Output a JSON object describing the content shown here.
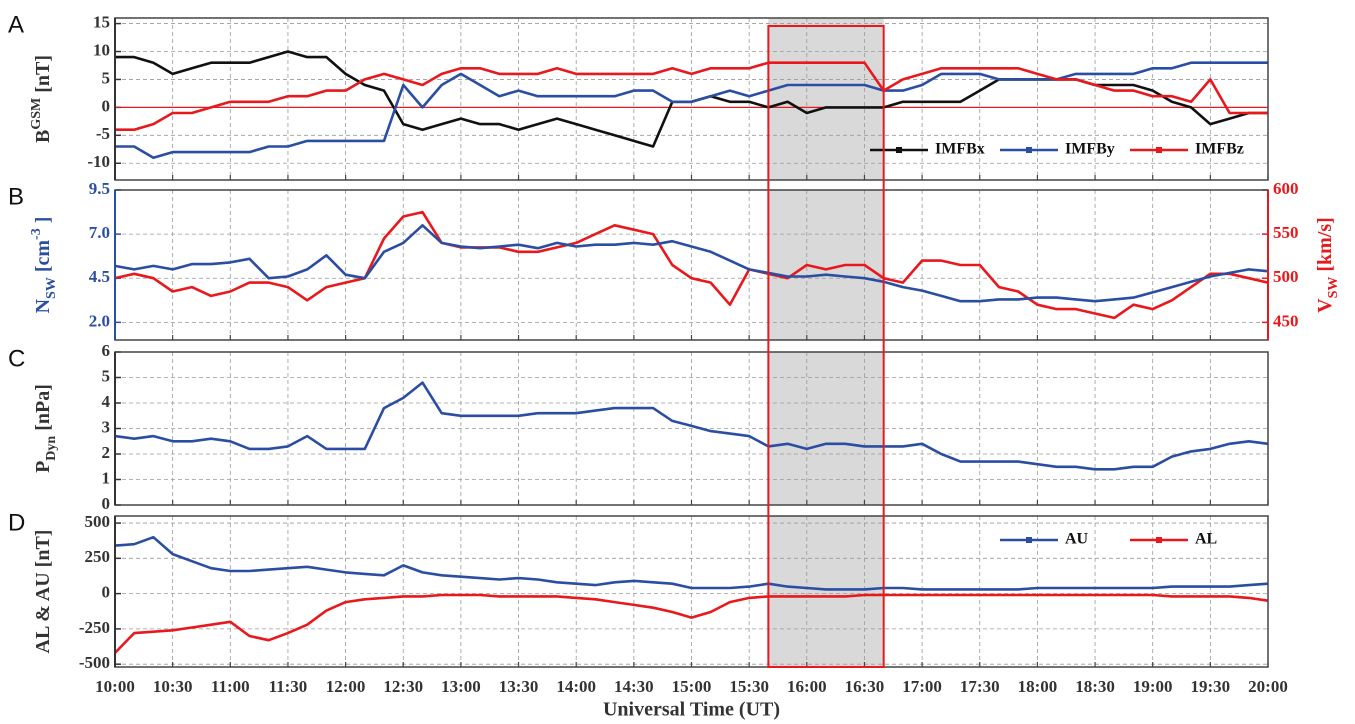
{
  "chart_data": [
    {
      "type": "line",
      "panel_label": "A",
      "ylabel": [
        {
          "text": "B"
        },
        {
          "text": "GSM",
          "shift": "super"
        },
        {
          "text": "[nT]"
        }
      ],
      "ylabel_color": "#333333",
      "x": [
        "10:00",
        "10:10",
        "10:20",
        "10:30",
        "10:40",
        "10:50",
        "11:00",
        "11:10",
        "11:20",
        "11:30",
        "11:40",
        "11:50",
        "12:00",
        "12:10",
        "12:20",
        "12:30",
        "12:40",
        "12:50",
        "13:00",
        "13:10",
        "13:20",
        "13:30",
        "13:40",
        "13:50",
        "14:00",
        "14:10",
        "14:20",
        "14:30",
        "14:40",
        "14:50",
        "15:00",
        "15:10",
        "15:20",
        "15:30",
        "15:40",
        "15:50",
        "16:00",
        "16:10",
        "16:20",
        "16:30",
        "16:40",
        "16:50",
        "17:00",
        "17:10",
        "17:20",
        "17:30",
        "17:40",
        "17:50",
        "18:00",
        "18:10",
        "18:20",
        "18:30",
        "18:40",
        "18:50",
        "19:00",
        "19:10",
        "19:20",
        "19:30",
        "19:40",
        "19:50",
        "20:00"
      ],
      "xlim": [
        "10:00",
        "20:00"
      ],
      "xticks": [
        "10:00",
        "10:30",
        "11:00",
        "11:30",
        "12:00",
        "12:30",
        "13:00",
        "13:30",
        "14:00",
        "14:30",
        "15:00",
        "15:30",
        "16:00",
        "16:30",
        "17:00",
        "17:30",
        "18:00",
        "18:30",
        "19:00",
        "19:30",
        "20:00"
      ],
      "ylim": [
        -13,
        16
      ],
      "yticks": [
        15,
        10,
        5,
        0,
        -5,
        -10
      ],
      "grid": true,
      "zero_line_color": "#e8191c",
      "highlight": [
        "15:40",
        "16:40"
      ],
      "legend": "lower right",
      "series": [
        {
          "name": "IMFBx",
          "color": "#111111",
          "values": [
            9,
            9,
            8,
            6,
            7,
            8,
            8,
            8,
            9,
            10,
            9,
            9,
            6,
            4,
            3,
            -3,
            -4,
            -3,
            -2,
            -3,
            -3,
            -4,
            -3,
            -2,
            -3,
            -4,
            -5,
            -6,
            -7,
            1,
            1,
            2,
            1,
            1,
            0,
            1,
            -1,
            0,
            0,
            0,
            0,
            1,
            1,
            1,
            1,
            3,
            5,
            5,
            5,
            5,
            5,
            4,
            4,
            4,
            3,
            1,
            0,
            -3,
            -2,
            -1,
            -1
          ]
        },
        {
          "name": "IMFBy",
          "color": "#2b4ea2",
          "values": [
            -7,
            -7,
            -9,
            -8,
            -8,
            -8,
            -8,
            -8,
            -7,
            -7,
            -6,
            -6,
            -6,
            -6,
            -6,
            4,
            0,
            4,
            6,
            4,
            2,
            3,
            2,
            2,
            2,
            2,
            2,
            3,
            3,
            1,
            1,
            2,
            3,
            2,
            3,
            4,
            4,
            4,
            4,
            4,
            3,
            3,
            4,
            6,
            6,
            6,
            5,
            5,
            5,
            5,
            6,
            6,
            6,
            6,
            7,
            7,
            8,
            8,
            8,
            8,
            8
          ]
        },
        {
          "name": "IMFBz",
          "color": "#e8191c",
          "values": [
            -4,
            -4,
            -3,
            -1,
            -1,
            0,
            1,
            1,
            1,
            2,
            2,
            3,
            3,
            5,
            6,
            5,
            4,
            6,
            7,
            7,
            6,
            6,
            6,
            7,
            6,
            6,
            6,
            6,
            6,
            7,
            6,
            7,
            7,
            7,
            8,
            8,
            8,
            8,
            8,
            8,
            3,
            5,
            6,
            7,
            7,
            7,
            7,
            7,
            6,
            5,
            5,
            4,
            3,
            3,
            2,
            2,
            1,
            5,
            -1,
            -1,
            -1
          ]
        }
      ]
    },
    {
      "type": "line",
      "panel_label": "B",
      "ylabel": [
        {
          "text": "N"
        },
        {
          "text": "SW",
          "shift": "sub"
        },
        {
          "text": "[cm"
        },
        {
          "text": "-3",
          "shift": "super"
        },
        {
          "text": "]"
        }
      ],
      "ylabel_color": "#2b4ea2",
      "y2label": [
        {
          "text": "V"
        },
        {
          "text": "SW",
          "shift": "sub"
        },
        {
          "text": "[km/s]"
        }
      ],
      "y2label_color": "#e8191c",
      "x": [
        "10:00",
        "10:10",
        "10:20",
        "10:30",
        "10:40",
        "10:50",
        "11:00",
        "11:10",
        "11:20",
        "11:30",
        "11:40",
        "11:50",
        "12:00",
        "12:10",
        "12:20",
        "12:30",
        "12:40",
        "12:50",
        "13:00",
        "13:10",
        "13:20",
        "13:30",
        "13:40",
        "13:50",
        "14:00",
        "14:10",
        "14:20",
        "14:30",
        "14:40",
        "14:50",
        "15:00",
        "15:10",
        "15:20",
        "15:30",
        "15:40",
        "15:50",
        "16:00",
        "16:10",
        "16:20",
        "16:30",
        "16:40",
        "16:50",
        "17:00",
        "17:10",
        "17:20",
        "17:30",
        "17:40",
        "17:50",
        "18:00",
        "18:10",
        "18:20",
        "18:30",
        "18:40",
        "18:50",
        "19:00",
        "19:10",
        "19:20",
        "19:30",
        "19:40",
        "19:50",
        "20:00"
      ],
      "xlim": [
        "10:00",
        "20:00"
      ],
      "xticks": [
        "10:00",
        "10:30",
        "11:00",
        "11:30",
        "12:00",
        "12:30",
        "13:00",
        "13:30",
        "14:00",
        "14:30",
        "15:00",
        "15:30",
        "16:00",
        "16:30",
        "17:00",
        "17:30",
        "18:00",
        "18:30",
        "19:00",
        "19:30",
        "20:00"
      ],
      "ylim": [
        1,
        9.5
      ],
      "yticks": [
        9.5,
        {
          "value": 7,
          "label": "7.0"
        },
        4.5,
        {
          "value": 2,
          "label": "2.0"
        }
      ],
      "y2lim": [
        430,
        600
      ],
      "y2ticks": [
        600,
        550,
        500,
        450
      ],
      "grid": true,
      "highlight": [
        "15:40",
        "16:40"
      ],
      "series": [
        {
          "color": "#e8191c",
          "axis": "y2",
          "values": [
            500,
            505,
            500,
            485,
            490,
            480,
            485,
            495,
            495,
            490,
            475,
            490,
            495,
            500,
            545,
            570,
            575,
            540,
            535,
            535,
            535,
            530,
            530,
            535,
            540,
            550,
            560,
            555,
            550,
            515,
            500,
            495,
            470,
            510,
            505,
            500,
            515,
            510,
            515,
            515,
            500,
            495,
            520,
            520,
            515,
            515,
            490,
            485,
            470,
            465,
            465,
            460,
            455,
            470,
            465,
            475,
            490,
            505,
            505,
            500,
            495
          ]
        },
        {
          "color": "#2b4ea2",
          "values": [
            5.2,
            5.0,
            5.2,
            5.0,
            5.3,
            5.3,
            5.4,
            5.6,
            4.5,
            4.6,
            5.0,
            5.8,
            4.7,
            4.5,
            6.0,
            6.5,
            7.5,
            6.5,
            6.3,
            6.2,
            6.3,
            6.4,
            6.2,
            6.5,
            6.3,
            6.4,
            6.4,
            6.5,
            6.4,
            6.6,
            6.3,
            6.0,
            5.5,
            5.0,
            4.8,
            4.6,
            4.6,
            4.7,
            4.6,
            4.5,
            4.3,
            4.0,
            3.8,
            3.5,
            3.2,
            3.2,
            3.3,
            3.3,
            3.4,
            3.4,
            3.3,
            3.2,
            3.3,
            3.4,
            3.7,
            4.0,
            4.3,
            4.6,
            4.8,
            5.0,
            4.9
          ]
        }
      ]
    },
    {
      "type": "line",
      "panel_label": "C",
      "ylabel": [
        {
          "text": "P"
        },
        {
          "text": "Dyn",
          "shift": "sub"
        },
        {
          "text": "[nPa]"
        }
      ],
      "ylabel_color": "#333333",
      "x": [
        "10:00",
        "10:10",
        "10:20",
        "10:30",
        "10:40",
        "10:50",
        "11:00",
        "11:10",
        "11:20",
        "11:30",
        "11:40",
        "11:50",
        "12:00",
        "12:10",
        "12:20",
        "12:30",
        "12:40",
        "12:50",
        "13:00",
        "13:10",
        "13:20",
        "13:30",
        "13:40",
        "13:50",
        "14:00",
        "14:10",
        "14:20",
        "14:30",
        "14:40",
        "14:50",
        "15:00",
        "15:10",
        "15:20",
        "15:30",
        "15:40",
        "15:50",
        "16:00",
        "16:10",
        "16:20",
        "16:30",
        "16:40",
        "16:50",
        "17:00",
        "17:10",
        "17:20",
        "17:30",
        "17:40",
        "17:50",
        "18:00",
        "18:10",
        "18:20",
        "18:30",
        "18:40",
        "18:50",
        "19:00",
        "19:10",
        "19:20",
        "19:30",
        "19:40",
        "19:50",
        "20:00"
      ],
      "xlim": [
        "10:00",
        "20:00"
      ],
      "xticks": [
        "10:00",
        "10:30",
        "11:00",
        "11:30",
        "12:00",
        "12:30",
        "13:00",
        "13:30",
        "14:00",
        "14:30",
        "15:00",
        "15:30",
        "16:00",
        "16:30",
        "17:00",
        "17:30",
        "18:00",
        "18:30",
        "19:00",
        "19:30",
        "20:00"
      ],
      "ylim": [
        0,
        6
      ],
      "yticks": [
        6,
        5,
        4,
        3,
        2,
        1,
        0
      ],
      "grid": true,
      "highlight": [
        "15:40",
        "16:40"
      ],
      "series": [
        {
          "color": "#2b4ea2",
          "values": [
            2.7,
            2.6,
            2.7,
            2.5,
            2.5,
            2.6,
            2.5,
            2.2,
            2.2,
            2.3,
            2.7,
            2.2,
            2.2,
            2.2,
            3.8,
            4.2,
            4.8,
            3.6,
            3.5,
            3.5,
            3.5,
            3.5,
            3.6,
            3.6,
            3.6,
            3.7,
            3.8,
            3.8,
            3.8,
            3.3,
            3.1,
            2.9,
            2.8,
            2.7,
            2.3,
            2.4,
            2.2,
            2.4,
            2.4,
            2.3,
            2.3,
            2.3,
            2.4,
            2.0,
            1.7,
            1.7,
            1.7,
            1.7,
            1.6,
            1.5,
            1.5,
            1.4,
            1.4,
            1.5,
            1.5,
            1.9,
            2.1,
            2.2,
            2.4,
            2.5,
            2.4
          ]
        }
      ]
    },
    {
      "type": "line",
      "panel_label": "D",
      "ylabel": [
        {
          "text": "AL & AU [nT]"
        }
      ],
      "ylabel_color": "#333333",
      "xlabel": "Universal Time (UT)",
      "x": [
        "10:00",
        "10:10",
        "10:20",
        "10:30",
        "10:40",
        "10:50",
        "11:00",
        "11:10",
        "11:20",
        "11:30",
        "11:40",
        "11:50",
        "12:00",
        "12:10",
        "12:20",
        "12:30",
        "12:40",
        "12:50",
        "13:00",
        "13:10",
        "13:20",
        "13:30",
        "13:40",
        "13:50",
        "14:00",
        "14:10",
        "14:20",
        "14:30",
        "14:40",
        "14:50",
        "15:00",
        "15:10",
        "15:20",
        "15:30",
        "15:40",
        "15:50",
        "16:00",
        "16:10",
        "16:20",
        "16:30",
        "16:40",
        "16:50",
        "17:00",
        "17:10",
        "17:20",
        "17:30",
        "17:40",
        "17:50",
        "18:00",
        "18:10",
        "18:20",
        "18:30",
        "18:40",
        "18:50",
        "19:00",
        "19:10",
        "19:20",
        "19:30",
        "19:40",
        "19:50",
        "20:00"
      ],
      "xlim": [
        "10:00",
        "20:00"
      ],
      "xticks": [
        "10:00",
        "10:30",
        "11:00",
        "11:30",
        "12:00",
        "12:30",
        "13:00",
        "13:30",
        "14:00",
        "14:30",
        "15:00",
        "15:30",
        "16:00",
        "16:30",
        "17:00",
        "17:30",
        "18:00",
        "18:30",
        "19:00",
        "19:30",
        "20:00"
      ],
      "ylim": [
        -520,
        550
      ],
      "yticks": [
        500,
        250,
        0,
        -250,
        -500
      ],
      "grid": true,
      "highlight": [
        "15:40",
        "16:40"
      ],
      "legend": "upper right",
      "series": [
        {
          "name": "AU",
          "color": "#2b4ea2",
          "values": [
            340,
            350,
            400,
            280,
            230,
            180,
            160,
            160,
            170,
            180,
            190,
            170,
            150,
            140,
            130,
            200,
            150,
            130,
            120,
            110,
            100,
            110,
            100,
            80,
            70,
            60,
            80,
            90,
            80,
            70,
            40,
            40,
            40,
            50,
            70,
            50,
            40,
            30,
            30,
            30,
            40,
            40,
            30,
            30,
            30,
            30,
            30,
            30,
            40,
            40,
            40,
            40,
            40,
            40,
            40,
            50,
            50,
            50,
            50,
            60,
            70
          ]
        },
        {
          "name": "AL",
          "color": "#e8191c",
          "values": [
            -420,
            -280,
            -270,
            -260,
            -240,
            -220,
            -200,
            -300,
            -330,
            -280,
            -220,
            -120,
            -60,
            -40,
            -30,
            -20,
            -20,
            -10,
            -10,
            -10,
            -20,
            -20,
            -20,
            -20,
            -30,
            -40,
            -60,
            -80,
            -100,
            -130,
            -170,
            -130,
            -60,
            -30,
            -20,
            -20,
            -20,
            -20,
            -20,
            -10,
            -10,
            -10,
            -10,
            -10,
            -10,
            -10,
            -10,
            -10,
            -10,
            -10,
            -10,
            -10,
            -10,
            -10,
            -10,
            -20,
            -20,
            -20,
            -20,
            -30,
            -50
          ]
        }
      ]
    }
  ]
}
